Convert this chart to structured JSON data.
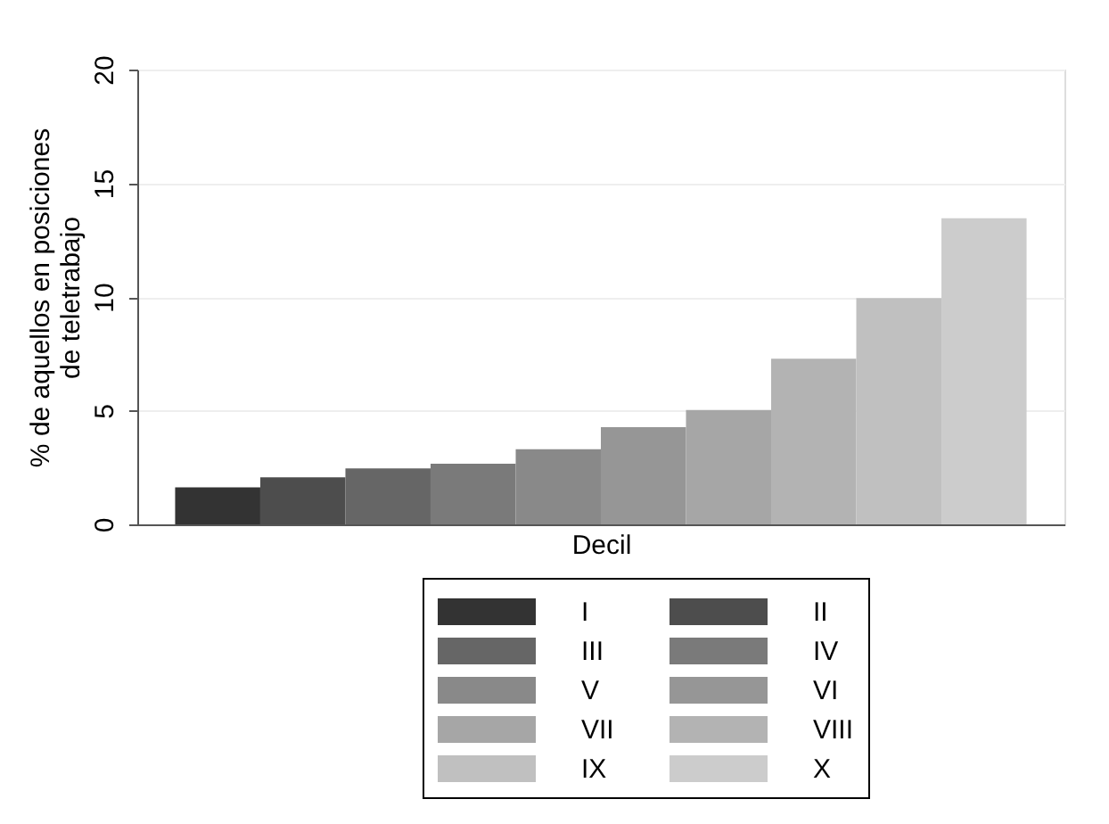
{
  "chart_data": {
    "type": "bar",
    "xlabel": "Decil",
    "ylabel": "% de aquellos en posiciones\nde teletrabajo",
    "categories": [
      null
    ],
    "series": [
      {
        "name": "I",
        "color": "#333333",
        "values": [
          1.63
        ]
      },
      {
        "name": "II",
        "color": "#4d4d4d",
        "values": [
          2.07
        ]
      },
      {
        "name": "III",
        "color": "#666666",
        "values": [
          2.46
        ]
      },
      {
        "name": "IV",
        "color": "#7a7a7a",
        "values": [
          2.67
        ]
      },
      {
        "name": "V",
        "color": "#898989",
        "values": [
          3.3
        ]
      },
      {
        "name": "VI",
        "color": "#969696",
        "values": [
          4.27
        ]
      },
      {
        "name": "VII",
        "color": "#a6a6a6",
        "values": [
          5.03
        ]
      },
      {
        "name": "VIII",
        "color": "#b3b3b3",
        "values": [
          7.28
        ]
      },
      {
        "name": "IX",
        "color": "#c0c0c0",
        "values": [
          9.95
        ]
      },
      {
        "name": "X",
        "color": "#cccccc",
        "values": [
          13.46
        ]
      }
    ],
    "ylim": [
      0,
      20
    ],
    "yticks": [
      0,
      5,
      10,
      15,
      20
    ],
    "grid": "y",
    "legend": "bottom"
  }
}
